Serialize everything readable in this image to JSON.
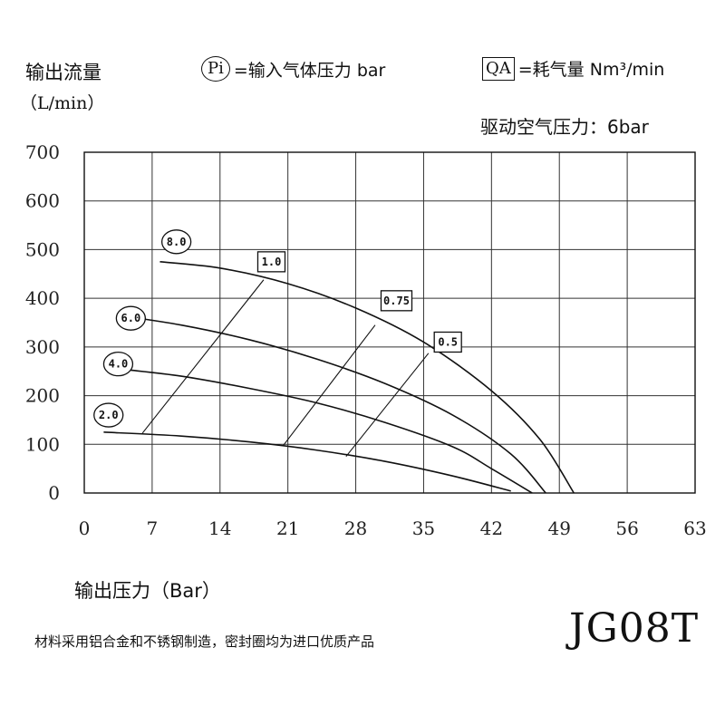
{
  "header": {
    "y_title": "输出流量",
    "y_unit": "（L/min）",
    "pi_symbol": "Pi",
    "pi_text": "=输入气体压力 bar",
    "qa_symbol": "QA",
    "qa_text": "=耗气量 Nm³/min",
    "drive_pressure": "驱动空气压力：6bar"
  },
  "footer": {
    "x_title": "输出压力（Bar）",
    "note": "材料采用铝合金和不锈钢制造，密封圈均为进口优质产品",
    "model": "JG08T"
  },
  "chart_data": {
    "type": "line",
    "title": "",
    "xlabel": "输出压力（Bar）",
    "ylabel": "输出流量（L/min）",
    "xlim": [
      0,
      63
    ],
    "ylim": [
      0,
      700
    ],
    "x_ticks": [
      0,
      7,
      14,
      21,
      28,
      35,
      42,
      49,
      56,
      63
    ],
    "y_ticks": [
      0,
      100,
      200,
      300,
      400,
      500,
      600,
      700
    ],
    "grid": true,
    "series": [
      {
        "name": "8.0",
        "points": [
          [
            7.8,
            475
          ],
          [
            14,
            462
          ],
          [
            21,
            430
          ],
          [
            28,
            380
          ],
          [
            35,
            310
          ],
          [
            42,
            210
          ],
          [
            47,
            110
          ],
          [
            50.5,
            0
          ]
        ]
      },
      {
        "name": "6.0",
        "points": [
          [
            3.5,
            365
          ],
          [
            10,
            345
          ],
          [
            17,
            315
          ],
          [
            24,
            275
          ],
          [
            31,
            225
          ],
          [
            38,
            160
          ],
          [
            44,
            80
          ],
          [
            47.6,
            0
          ]
        ]
      },
      {
        "name": "4.0",
        "points": [
          [
            4.5,
            253
          ],
          [
            10,
            240
          ],
          [
            17,
            215
          ],
          [
            24,
            185
          ],
          [
            31,
            145
          ],
          [
            38,
            95
          ],
          [
            42,
            50
          ],
          [
            46.2,
            0
          ]
        ]
      },
      {
        "name": "2.0",
        "points": [
          [
            2,
            125
          ],
          [
            10,
            117
          ],
          [
            17,
            105
          ],
          [
            24,
            88
          ],
          [
            31,
            65
          ],
          [
            38,
            35
          ],
          [
            44,
            4
          ]
        ]
      }
    ],
    "consumption_lines": [
      {
        "name": "1.0",
        "points": [
          [
            6,
            123
          ],
          [
            18.5,
            438
          ]
        ]
      },
      {
        "name": "0.75",
        "points": [
          [
            20.5,
            97
          ],
          [
            30,
            345
          ]
        ]
      },
      {
        "name": "0.5",
        "points": [
          [
            27,
            75
          ],
          [
            35.5,
            287
          ]
        ]
      }
    ],
    "pressure_labels": [
      "8.0",
      "6.0",
      "4.0",
      "2.0"
    ],
    "consumption_labels": [
      "1.0",
      "0.75",
      "0.5"
    ]
  }
}
